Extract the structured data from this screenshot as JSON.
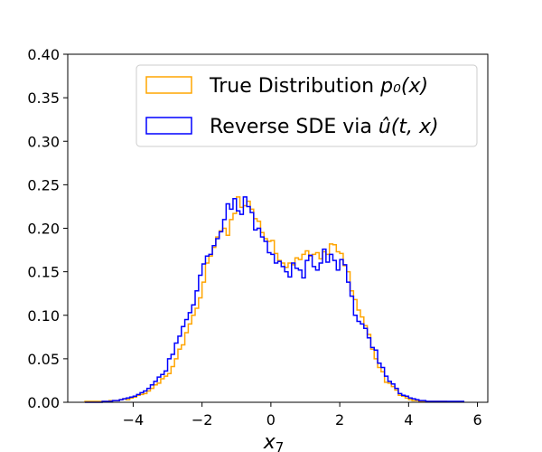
{
  "chart_data": {
    "type": "histogram",
    "title": "",
    "xlabel": "x",
    "xlabel_subscript": "7",
    "ylabel": "",
    "xlim": [
      -5.9,
      6.3
    ],
    "ylim": [
      0,
      0.4
    ],
    "xticks": [
      -4,
      -2,
      0,
      2,
      4,
      6
    ],
    "xtick_labels": [
      "−4",
      "−2",
      "0",
      "2",
      "4",
      "6"
    ],
    "yticks": [
      0.0,
      0.05,
      0.1,
      0.15,
      0.2,
      0.25,
      0.3,
      0.35,
      0.4
    ],
    "ytick_labels": [
      "0.00",
      "0.05",
      "0.10",
      "0.15",
      "0.20",
      "0.25",
      "0.30",
      "0.35",
      "0.40"
    ],
    "bin_edges_start": -5.4,
    "bin_width": 0.1,
    "legend_position": "top-right",
    "series": [
      {
        "name": "True Distribution",
        "label_math": "p₀(x)",
        "color": "#FFA500",
        "values": [
          0.001,
          0.001,
          0.001,
          0.001,
          0.001,
          0.001,
          0.001,
          0.002,
          0.002,
          0.002,
          0.003,
          0.004,
          0.003,
          0.005,
          0.006,
          0.008,
          0.009,
          0.01,
          0.013,
          0.016,
          0.02,
          0.022,
          0.027,
          0.03,
          0.033,
          0.041,
          0.05,
          0.061,
          0.066,
          0.08,
          0.09,
          0.1,
          0.108,
          0.12,
          0.138,
          0.16,
          0.168,
          0.178,
          0.19,
          0.197,
          0.2,
          0.192,
          0.21,
          0.217,
          0.236,
          0.224,
          0.226,
          0.231,
          0.222,
          0.211,
          0.208,
          0.195,
          0.188,
          0.185,
          0.186,
          0.171,
          0.163,
          0.16,
          0.155,
          0.16,
          0.158,
          0.166,
          0.164,
          0.17,
          0.174,
          0.168,
          0.17,
          0.172,
          0.165,
          0.173,
          0.17,
          0.182,
          0.181,
          0.173,
          0.171,
          0.157,
          0.15,
          0.128,
          0.118,
          0.106,
          0.098,
          0.088,
          0.078,
          0.061,
          0.05,
          0.04,
          0.035,
          0.023,
          0.022,
          0.018,
          0.014,
          0.008,
          0.007,
          0.005,
          0.003,
          0.002,
          0.002,
          0.001,
          0.001,
          0.001,
          0.001,
          0.001,
          0.001,
          0.001,
          0.001
        ]
      },
      {
        "name": "Reverse SDE via",
        "label_math": "û(t, x)",
        "color": "#0000FF",
        "values": [
          0,
          0,
          0,
          0,
          0,
          0.001,
          0.001,
          0.001,
          0.002,
          0.002,
          0.003,
          0.004,
          0.005,
          0.006,
          0.007,
          0.009,
          0.011,
          0.013,
          0.016,
          0.02,
          0.024,
          0.029,
          0.032,
          0.036,
          0.05,
          0.055,
          0.068,
          0.076,
          0.087,
          0.095,
          0.103,
          0.112,
          0.128,
          0.146,
          0.159,
          0.168,
          0.17,
          0.18,
          0.188,
          0.196,
          0.21,
          0.228,
          0.222,
          0.234,
          0.22,
          0.216,
          0.236,
          0.225,
          0.218,
          0.198,
          0.2,
          0.19,
          0.185,
          0.172,
          0.17,
          0.16,
          0.162,
          0.156,
          0.15,
          0.144,
          0.16,
          0.154,
          0.152,
          0.143,
          0.163,
          0.169,
          0.156,
          0.152,
          0.16,
          0.176,
          0.161,
          0.17,
          0.163,
          0.152,
          0.164,
          0.158,
          0.138,
          0.122,
          0.1,
          0.093,
          0.09,
          0.085,
          0.074,
          0.063,
          0.06,
          0.045,
          0.04,
          0.03,
          0.024,
          0.021,
          0.016,
          0.01,
          0.008,
          0.007,
          0.005,
          0.004,
          0.003,
          0.002,
          0.002,
          0.001,
          0.001,
          0.001,
          0.001,
          0.001,
          0.001,
          0.001,
          0.001,
          0.001,
          0.001,
          0.001
        ]
      }
    ]
  }
}
